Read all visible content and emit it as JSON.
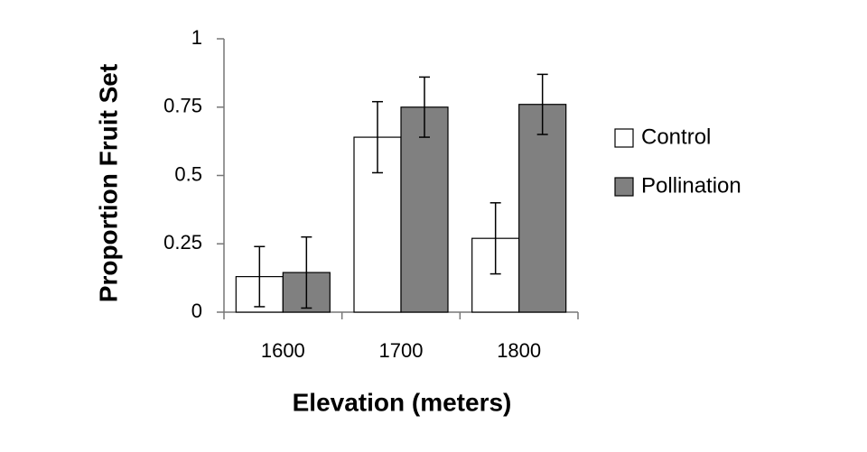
{
  "chart_data": {
    "type": "bar",
    "x_label": "Elevation (meters)",
    "y_label": "Proportion Fruit Set",
    "categories": [
      "1600",
      "1700",
      "1800"
    ],
    "series": [
      {
        "name": "Control",
        "color": "#ffffff",
        "values": [
          0.13,
          0.64,
          0.27
        ],
        "errors": [
          0.11,
          0.13,
          0.13
        ]
      },
      {
        "name": "Pollination",
        "color": "#808080",
        "values": [
          0.145,
          0.75,
          0.76
        ],
        "errors": [
          0.13,
          0.11,
          0.11
        ]
      }
    ],
    "ylim": [
      0,
      1
    ],
    "yticks": [
      0,
      0.25,
      0.5,
      0.75,
      1
    ],
    "grid": false,
    "legend": "right"
  }
}
